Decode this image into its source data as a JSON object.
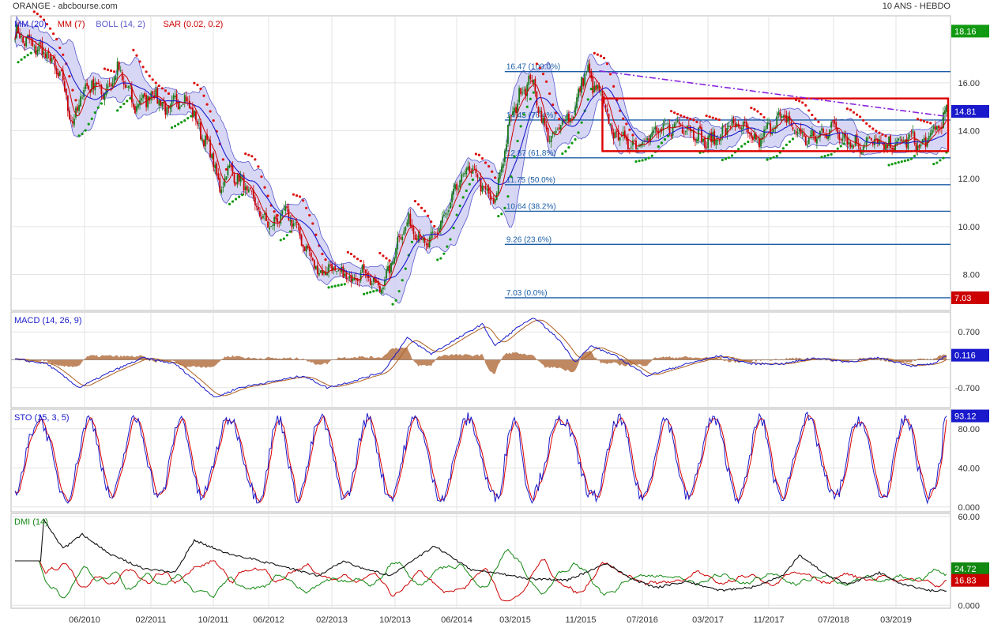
{
  "header": {
    "left": "ORANGE - abcbourse.com",
    "right": "10 ANS - HEBDO"
  },
  "colors": {
    "candle_up": "#1a7a1a",
    "candle_down": "#cc0000",
    "ma20": "#1a1acc",
    "ma7": "#cc0000",
    "boll_fill": "#c9c9f2",
    "boll_line": "#5858cc",
    "sar_up": "#119911",
    "sar_down": "#dd1111",
    "fib": "#1a5da6",
    "macd": "#1a1acc",
    "signal": "#b06020",
    "hist": "#b06a3a",
    "sto_k": "#1a1acc",
    "sto_d": "#dd0000",
    "dmi_plus": "#118811",
    "dmi_minus": "#cc0000",
    "adx": "#111111",
    "box": "#dd0000",
    "trend": "#8822dd"
  },
  "chart_data": [
    {
      "id": "price",
      "type": "candlestick",
      "legend": [
        {
          "name": "MM (20)",
          "color": "#1a1acc"
        },
        {
          "name": "MM (7)",
          "color": "#cc0000"
        },
        {
          "name": "BOLL (14, 2)",
          "color": "#5858cc"
        },
        {
          "name": "SAR (0.02, 0.2)",
          "color": "#cc0000"
        }
      ],
      "x_ticks": [
        "06/2010",
        "02/2011",
        "10/2011",
        "06/2012",
        "02/2013",
        "10/2013",
        "06/2014",
        "03/2015",
        "11/2015",
        "07/2016",
        "03/2017",
        "11/2017",
        "07/2018",
        "03/2019"
      ],
      "y_ticks": [
        "16.00",
        "14.00",
        "12.00",
        "10.00",
        "8.00"
      ],
      "ylim": [
        6.5,
        18.8
      ],
      "close_path": [
        [
          0,
          18.1
        ],
        [
          10,
          17.6
        ],
        [
          20,
          17.2
        ],
        [
          30,
          16.0
        ],
        [
          36,
          14.2
        ],
        [
          42,
          15.6
        ],
        [
          48,
          16.0
        ],
        [
          56,
          15.6
        ],
        [
          64,
          16.5
        ],
        [
          70,
          15.8
        ],
        [
          74,
          15.0
        ],
        [
          80,
          15.3
        ],
        [
          88,
          15.6
        ],
        [
          94,
          14.8
        ],
        [
          104,
          15.4
        ],
        [
          110,
          15.0
        ],
        [
          114,
          14.2
        ],
        [
          118,
          13.7
        ],
        [
          124,
          12.8
        ],
        [
          128,
          11.4
        ],
        [
          132,
          12.4
        ],
        [
          140,
          12.0
        ],
        [
          146,
          11.4
        ],
        [
          150,
          11.0
        ],
        [
          154,
          10.4
        ],
        [
          160,
          10.0
        ],
        [
          168,
          10.6
        ],
        [
          174,
          10.2
        ],
        [
          180,
          9.3
        ],
        [
          186,
          8.6
        ],
        [
          190,
          8.0
        ],
        [
          196,
          8.3
        ],
        [
          204,
          8.0
        ],
        [
          210,
          7.8
        ],
        [
          218,
          8.2
        ],
        [
          224,
          7.6
        ],
        [
          228,
          7.4
        ],
        [
          234,
          8.2
        ],
        [
          240,
          9.6
        ],
        [
          246,
          10.2
        ],
        [
          252,
          9.6
        ],
        [
          258,
          9.2
        ],
        [
          264,
          9.9
        ],
        [
          270,
          10.6
        ],
        [
          276,
          11.6
        ],
        [
          282,
          12.4
        ],
        [
          288,
          12.2
        ],
        [
          294,
          11.4
        ],
        [
          300,
          11.0
        ],
        [
          304,
          12.6
        ],
        [
          310,
          14.6
        ],
        [
          316,
          15.6
        ],
        [
          322,
          16.2
        ],
        [
          326,
          15.4
        ],
        [
          330,
          14.2
        ],
        [
          336,
          13.6
        ],
        [
          342,
          14.4
        ],
        [
          350,
          14.8
        ],
        [
          354,
          16.2
        ],
        [
          358,
          16.4
        ],
        [
          362,
          15.8
        ],
        [
          368,
          15.2
        ],
        [
          372,
          14.0
        ],
        [
          378,
          13.8
        ],
        [
          384,
          13.4
        ],
        [
          392,
          13.6
        ],
        [
          400,
          13.9
        ],
        [
          408,
          14.1
        ],
        [
          416,
          14.3
        ],
        [
          424,
          14.0
        ],
        [
          432,
          13.5
        ],
        [
          440,
          13.8
        ],
        [
          448,
          14.3
        ],
        [
          456,
          14.0
        ],
        [
          464,
          13.5
        ],
        [
          472,
          14.2
        ],
        [
          480,
          14.6
        ],
        [
          488,
          14.0
        ],
        [
          496,
          13.6
        ],
        [
          504,
          13.9
        ],
        [
          512,
          14.2
        ],
        [
          520,
          13.6
        ],
        [
          528,
          13.4
        ],
        [
          536,
          13.6
        ],
        [
          544,
          13.3
        ],
        [
          552,
          13.5
        ],
        [
          560,
          13.7
        ],
        [
          566,
          13.3
        ],
        [
          572,
          13.8
        ],
        [
          578,
          14.3
        ],
        [
          582,
          14.7
        ]
      ],
      "fibonacci": [
        {
          "label": "16.47  (100.0%)",
          "value": 16.47
        },
        {
          "label": "14.45  (76.4%)",
          "value": 14.45
        },
        {
          "label": "12.87  (61.8%)",
          "value": 12.87
        },
        {
          "label": "11.75  (50.0%)",
          "value": 11.75
        },
        {
          "label": "10.64  (38.2%)",
          "value": 10.64
        },
        {
          "label": "9.26  (23.6%)",
          "value": 9.26
        },
        {
          "label": "7.03  (0.0%)",
          "value": 7.03
        }
      ],
      "range_box": {
        "from_week": 367,
        "to_week": 582,
        "top": 15.35,
        "bottom": 13.15
      },
      "trendline": {
        "from_week": 365,
        "from_value": 16.5,
        "to_week": 582,
        "to_value": 14.6
      },
      "badges": [
        {
          "value": "18.16",
          "y": 18.16,
          "color": "#119911"
        },
        {
          "value": "14.81",
          "y": 14.81,
          "color": "#1a1acc"
        },
        {
          "value": "7.03",
          "y": 7.03,
          "color": "#cc0000"
        }
      ]
    },
    {
      "id": "macd",
      "type": "line",
      "legend": [
        {
          "name": "MACD (14, 26, 9)",
          "color": "#1a1acc"
        }
      ],
      "y_ticks": [
        "0.700",
        "-0.700"
      ],
      "ylim": [
        -1.2,
        1.2
      ],
      "path": [
        [
          0,
          0.02
        ],
        [
          20,
          -0.1
        ],
        [
          40,
          -0.7
        ],
        [
          60,
          -0.3
        ],
        [
          80,
          0.05
        ],
        [
          100,
          -0.1
        ],
        [
          115,
          -0.6
        ],
        [
          125,
          -0.95
        ],
        [
          140,
          -0.7
        ],
        [
          160,
          -0.55
        ],
        [
          180,
          -0.4
        ],
        [
          195,
          -0.7
        ],
        [
          210,
          -0.55
        ],
        [
          230,
          -0.3
        ],
        [
          245,
          0.55
        ],
        [
          260,
          0.15
        ],
        [
          275,
          0.5
        ],
        [
          292,
          0.9
        ],
        [
          300,
          0.35
        ],
        [
          315,
          0.85
        ],
        [
          325,
          1.05
        ],
        [
          340,
          0.5
        ],
        [
          350,
          -0.05
        ],
        [
          360,
          0.35
        ],
        [
          375,
          0.1
        ],
        [
          395,
          -0.4
        ],
        [
          420,
          -0.1
        ],
        [
          440,
          0.1
        ],
        [
          460,
          -0.1
        ],
        [
          480,
          -0.1
        ],
        [
          500,
          0.05
        ],
        [
          520,
          -0.05
        ],
        [
          540,
          0.05
        ],
        [
          560,
          -0.15
        ],
        [
          575,
          -0.1
        ],
        [
          582,
          0.12
        ]
      ],
      "badges": [
        {
          "value": "0.116",
          "y": 0.116,
          "color": "#1a1acc"
        }
      ]
    },
    {
      "id": "sto",
      "type": "line",
      "legend": [
        {
          "name": "STO (15, 3, 5)",
          "color": "#1a1acc"
        }
      ],
      "y_ticks": [
        "80.00",
        "40.00",
        "0.000"
      ],
      "ylim": [
        -5,
        100
      ],
      "periods": [
        34,
        28,
        30,
        26,
        36,
        24,
        30,
        28,
        32,
        34,
        22,
        40,
        30,
        28,
        32,
        26,
        34,
        30,
        28,
        36
      ],
      "badges": [
        {
          "value": "93.12",
          "y": 93.12,
          "color": "#1a1acc"
        }
      ]
    },
    {
      "id": "dmi",
      "type": "line",
      "legend": [
        {
          "name": "DMI (14)",
          "color": "#118811"
        }
      ],
      "y_ticks": [
        "60.00",
        "0.000"
      ],
      "ylim": [
        -2,
        62
      ],
      "adx_path": [
        [
          16,
          30
        ],
        [
          18,
          58
        ],
        [
          30,
          38
        ],
        [
          42,
          48
        ],
        [
          60,
          34
        ],
        [
          80,
          25
        ],
        [
          100,
          22
        ],
        [
          112,
          44
        ],
        [
          130,
          36
        ],
        [
          160,
          28
        ],
        [
          190,
          20
        ],
        [
          205,
          30
        ],
        [
          220,
          24
        ],
        [
          235,
          20
        ],
        [
          262,
          40
        ],
        [
          285,
          24
        ],
        [
          300,
          22
        ],
        [
          320,
          18
        ],
        [
          345,
          17
        ],
        [
          370,
          28
        ],
        [
          385,
          18
        ],
        [
          400,
          12
        ],
        [
          420,
          16
        ],
        [
          440,
          10
        ],
        [
          460,
          12
        ],
        [
          480,
          20
        ],
        [
          490,
          34
        ],
        [
          505,
          22
        ],
        [
          520,
          14
        ],
        [
          540,
          22
        ],
        [
          555,
          14
        ],
        [
          570,
          10
        ],
        [
          582,
          10
        ]
      ],
      "badges": [
        {
          "value": "24.72",
          "y": 24.72,
          "color": "#118811"
        },
        {
          "value": "16.83",
          "y": 16.83,
          "color": "#cc0000"
        }
      ]
    }
  ]
}
